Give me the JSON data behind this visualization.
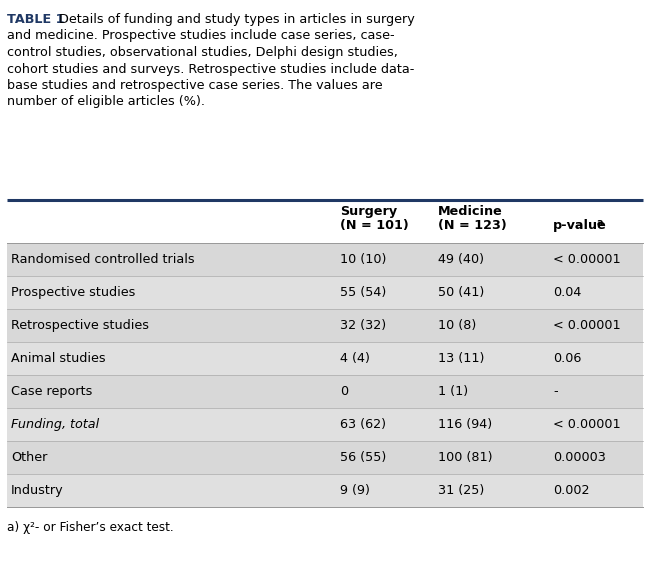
{
  "title_bold": "TABLE 1",
  "title_rest_lines": [
    " Details of funding and study types in articles in surgery",
    "and medicine. Prospective studies include case series, case-",
    "control studies, observational studies, Delphi design studies,",
    "cohort studies and surveys. Retrospective studies include data-",
    "base studies and retrospective case series. The values are",
    "number of eligible articles (%)."
  ],
  "row_labels": [
    "Randomised controlled trials",
    "Prospective studies",
    "Retrospective studies",
    "Animal studies",
    "Case reports",
    "Funding, total",
    "Other",
    "Industry"
  ],
  "row_italic": [
    false,
    false,
    false,
    false,
    false,
    true,
    false,
    false
  ],
  "col1": [
    "10 (10)",
    "55 (54)",
    "32 (32)",
    "4 (4)",
    "0",
    "63 (62)",
    "56 (55)",
    "9 (9)"
  ],
  "col2": [
    "49 (40)",
    "50 (41)",
    "10 (8)",
    "13 (11)",
    "1 (1)",
    "116 (94)",
    "100 (81)",
    "31 (25)"
  ],
  "col3": [
    "< 0.00001",
    "0.04",
    "< 0.00001",
    "0.06",
    "-",
    "< 0.00001",
    "0.00003",
    "0.002"
  ],
  "header_color": "#1f3864",
  "bg_color": "#ffffff",
  "footnote": "a) χ²- or Fisher’s exact test.",
  "stripe_colors": [
    "#d8d8d8",
    "#e8e8e8"
  ],
  "row_bg_odd": "#d4d4d4",
  "row_bg_even": "#e6e6e6"
}
